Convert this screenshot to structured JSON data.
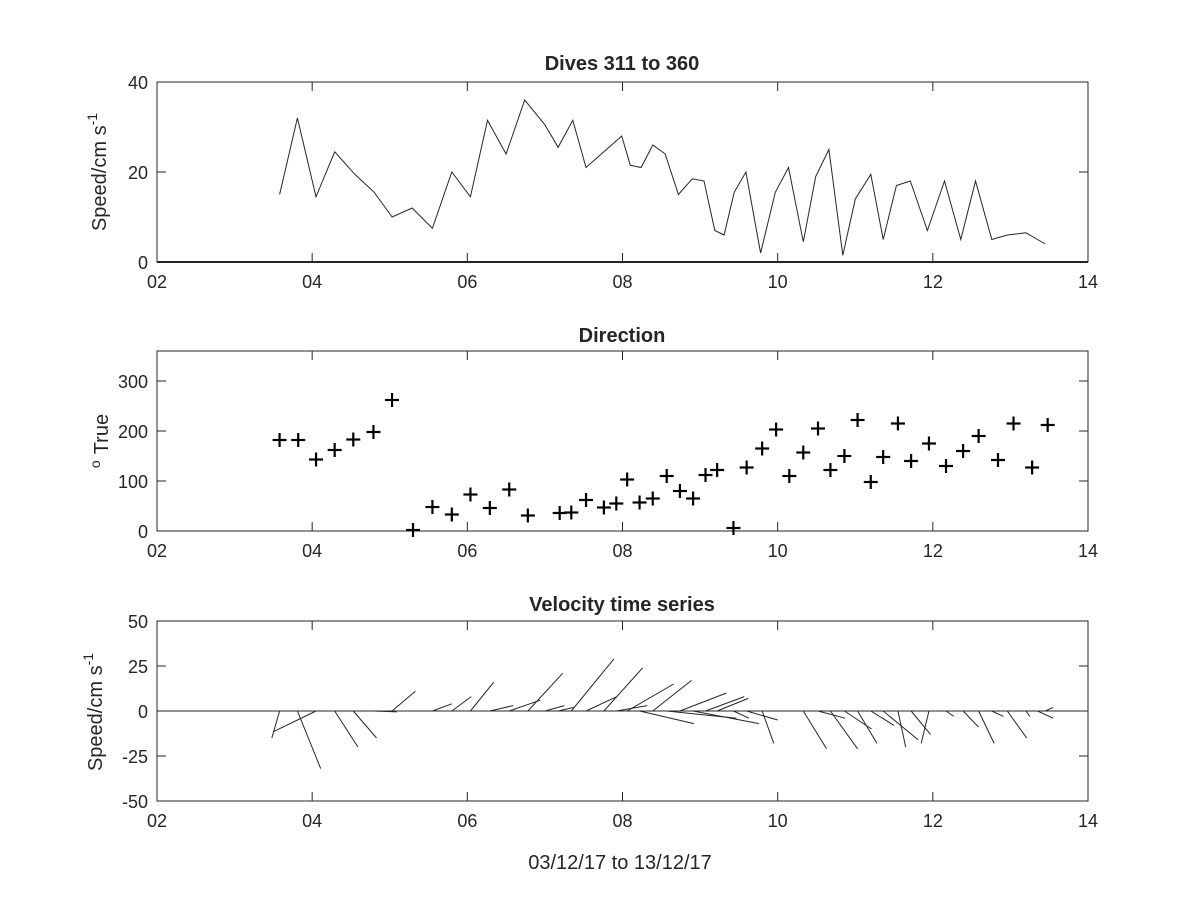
{
  "chart_data": [
    {
      "type": "line",
      "title": "Dives 311 to 360",
      "ylabel": "Speed/cm s",
      "ylabel_superscript": "-1",
      "xlim": [
        2,
        14
      ],
      "ylim": [
        0,
        40
      ],
      "xticks": [
        "02",
        "04",
        "06",
        "08",
        "10",
        "12",
        "14"
      ],
      "yticks": [
        "0",
        "20",
        "40"
      ],
      "grid": false,
      "series": [
        {
          "x": [
            3.58,
            3.81,
            4.05,
            4.29,
            4.55,
            4.8,
            5.03,
            5.29,
            5.55,
            5.8,
            6.04,
            6.26,
            6.5,
            6.74,
            7.0,
            7.17,
            7.36,
            7.53,
            7.76,
            7.99,
            8.1,
            8.24,
            8.39,
            8.55,
            8.72,
            8.9,
            9.05,
            9.19,
            9.31,
            9.44,
            9.59,
            9.78,
            9.97,
            10.14,
            10.33,
            10.49,
            10.66,
            10.84,
            11.0,
            11.2,
            11.36,
            11.53,
            11.71,
            11.93,
            12.15,
            12.36,
            12.55,
            12.76,
            12.96,
            13.2,
            13.35,
            13.45
          ],
          "y": [
            15.0,
            32.0,
            14.5,
            24.5,
            19.5,
            15.5,
            10.0,
            12.0,
            7.5,
            20.0,
            14.5,
            31.5,
            24.0,
            36.0,
            30.5,
            25.5,
            31.5,
            21.0,
            24.5,
            28.0,
            21.5,
            21.0,
            26.0,
            24.0,
            15.0,
            18.5,
            18.0,
            7.0,
            6.0,
            15.5,
            20.0,
            2.0,
            15.5,
            21.0,
            4.5,
            19.0,
            25.0,
            1.5,
            14.0,
            19.5,
            5.0,
            17.0,
            18.0,
            7.0,
            18.0,
            5.0,
            18.0,
            5.0,
            6.0,
            6.5,
            5.0,
            4.0
          ]
        }
      ]
    },
    {
      "type": "scatter",
      "title": "Direction",
      "ylabel": "True",
      "ylabel_prefix": "o",
      "xlim": [
        2,
        14
      ],
      "ylim": [
        0,
        360
      ],
      "xticks": [
        "02",
        "04",
        "06",
        "08",
        "10",
        "12",
        "14"
      ],
      "yticks": [
        "0",
        "100",
        "200",
        "300"
      ],
      "grid": false,
      "marker": "plus",
      "series": [
        {
          "x": [
            3.58,
            3.82,
            4.05,
            4.29,
            4.53,
            4.79,
            5.03,
            5.3,
            5.55,
            5.8,
            6.04,
            6.29,
            6.54,
            6.78,
            7.19,
            7.34,
            7.53,
            7.76,
            7.92,
            8.06,
            8.22,
            8.39,
            8.57,
            8.74,
            8.91,
            9.07,
            9.22,
            9.43,
            9.6,
            9.8,
            9.98,
            10.15,
            10.33,
            10.52,
            10.68,
            10.86,
            11.03,
            11.2,
            11.36,
            11.55,
            11.72,
            11.95,
            12.17,
            12.39,
            12.59,
            12.84,
            13.04,
            13.28,
            13.48
          ],
          "y": [
            182,
            182,
            143,
            162,
            183,
            198,
            262,
            2,
            48,
            33,
            73,
            46,
            83,
            31,
            36,
            37,
            62,
            47,
            55,
            103,
            57,
            65,
            110,
            80,
            65,
            112,
            122,
            6,
            127,
            165,
            203,
            110,
            157,
            205,
            122,
            150,
            222,
            98,
            148,
            215,
            140,
            175,
            130,
            160,
            190,
            142,
            215,
            127,
            212
          ]
        }
      ]
    },
    {
      "type": "line",
      "subtype": "stick",
      "title": "Velocity time series",
      "ylabel": "Speed/cm s",
      "ylabel_superscript": "-1",
      "xlabel": "03/12/17 to 13/12/17",
      "xlim": [
        2,
        14
      ],
      "ylim": [
        -50,
        50
      ],
      "xticks": [
        "02",
        "04",
        "06",
        "08",
        "10",
        "12",
        "14"
      ],
      "yticks": [
        "-50",
        "-25",
        "0",
        "25",
        "50"
      ],
      "grid": false,
      "baseline": 0,
      "sticks": [
        {
          "t": 3.58,
          "u": -0.1,
          "v": -15.0
        },
        {
          "t": 3.81,
          "u": 0.3,
          "v": -32.0
        },
        {
          "t": 4.05,
          "u": -0.55,
          "v": -11.5
        },
        {
          "t": 4.29,
          "u": 0.3,
          "v": -20.0
        },
        {
          "t": 4.53,
          "u": 0.3,
          "v": -15.0
        },
        {
          "t": 4.79,
          "u": 0.3,
          "v": -0.5
        },
        {
          "t": 5.03,
          "u": 0.3,
          "v": 11.0
        },
        {
          "t": 5.55,
          "u": 0.25,
          "v": 4.0
        },
        {
          "t": 5.8,
          "u": 0.25,
          "v": 8.0
        },
        {
          "t": 6.04,
          "u": 0.3,
          "v": 16.0
        },
        {
          "t": 6.29,
          "u": 0.3,
          "v": 3.0
        },
        {
          "t": 6.54,
          "u": 0.4,
          "v": 6.0
        },
        {
          "t": 6.78,
          "u": 0.45,
          "v": 21.0
        },
        {
          "t": 7.0,
          "u": 0.25,
          "v": 3.0
        },
        {
          "t": 7.17,
          "u": 0.2,
          "v": 2.0
        },
        {
          "t": 7.34,
          "u": 0.55,
          "v": 29.0
        },
        {
          "t": 7.53,
          "u": 0.4,
          "v": 8.0
        },
        {
          "t": 7.76,
          "u": 0.5,
          "v": 24.0
        },
        {
          "t": 7.92,
          "u": 0.4,
          "v": 3.0
        },
        {
          "t": 8.06,
          "u": 0.6,
          "v": 15.0
        },
        {
          "t": 8.22,
          "u": 0.7,
          "v": -7.0
        },
        {
          "t": 8.39,
          "u": 0.5,
          "v": 17.0
        },
        {
          "t": 8.57,
          "u": 0.9,
          "v": -4.0
        },
        {
          "t": 8.74,
          "u": 0.6,
          "v": 10.0
        },
        {
          "t": 8.91,
          "u": 0.85,
          "v": -7.0
        },
        {
          "t": 9.07,
          "u": 0.5,
          "v": 8.0
        },
        {
          "t": 9.22,
          "u": 0.4,
          "v": 7.0
        },
        {
          "t": 9.43,
          "u": 0.2,
          "v": -4.0
        },
        {
          "t": 9.6,
          "u": 0.4,
          "v": -5.0
        },
        {
          "t": 9.8,
          "u": 0.15,
          "v": -18.0
        },
        {
          "t": 10.12,
          "u": 0.3,
          "v": 0.0
        },
        {
          "t": 10.33,
          "u": 0.3,
          "v": -21.0
        },
        {
          "t": 10.52,
          "u": 0.35,
          "v": -4.0
        },
        {
          "t": 10.68,
          "u": 0.35,
          "v": -21.0
        },
        {
          "t": 10.86,
          "u": 0.35,
          "v": -10.0
        },
        {
          "t": 11.03,
          "u": 0.25,
          "v": -18.0
        },
        {
          "t": 11.2,
          "u": 0.3,
          "v": -8.0
        },
        {
          "t": 11.36,
          "u": 0.45,
          "v": -16.0
        },
        {
          "t": 11.55,
          "u": 0.1,
          "v": -20.0
        },
        {
          "t": 11.72,
          "u": 0.25,
          "v": -13.0
        },
        {
          "t": 11.95,
          "u": -0.1,
          "v": -18.0
        },
        {
          "t": 12.17,
          "u": 0.1,
          "v": -3.0
        },
        {
          "t": 12.39,
          "u": 0.2,
          "v": -9.0
        },
        {
          "t": 12.59,
          "u": 0.2,
          "v": -18.0
        },
        {
          "t": 12.76,
          "u": 0.15,
          "v": -3.0
        },
        {
          "t": 12.96,
          "u": 0.25,
          "v": -15.0
        },
        {
          "t": 13.2,
          "u": 0.05,
          "v": -3.0
        },
        {
          "t": 13.35,
          "u": 0.2,
          "v": -4.0
        },
        {
          "t": 13.45,
          "u": 0.1,
          "v": 2.0
        }
      ]
    }
  ]
}
